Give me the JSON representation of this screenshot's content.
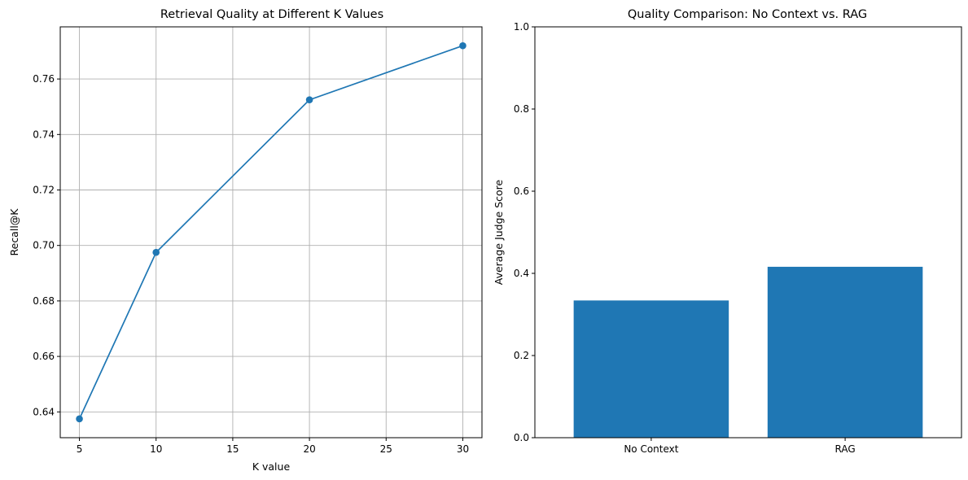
{
  "chart_data": [
    {
      "type": "line",
      "title": "Retrieval Quality at Different K Values",
      "xlabel": "K value",
      "ylabel": "Recall@K",
      "x": [
        5,
        10,
        20,
        30
      ],
      "y": [
        0.6375,
        0.6975,
        0.7525,
        0.772
      ],
      "xlim": [
        3.75,
        31.25
      ],
      "ylim": [
        0.6307,
        0.7788
      ],
      "xticks": [
        5,
        10,
        15,
        20,
        25,
        30
      ],
      "xtick_labels": [
        "5",
        "10",
        "15",
        "20",
        "25",
        "30"
      ],
      "yticks": [
        0.64,
        0.66,
        0.68,
        0.7,
        0.72,
        0.74,
        0.76
      ],
      "ytick_labels": [
        "0.64",
        "0.66",
        "0.68",
        "0.70",
        "0.72",
        "0.74",
        "0.76"
      ],
      "grid": true,
      "marker": "circle",
      "color": "#1f77b4"
    },
    {
      "type": "bar",
      "title": "Quality Comparison: No Context vs. RAG",
      "xlabel": "",
      "ylabel": "Average Judge Score",
      "categories": [
        "No Context",
        "RAG"
      ],
      "values": [
        0.334,
        0.416
      ],
      "ylim": [
        0,
        1.0
      ],
      "yticks": [
        0.0,
        0.2,
        0.4,
        0.6,
        0.8,
        1.0
      ],
      "ytick_labels": [
        "0.0",
        "0.2",
        "0.4",
        "0.6",
        "0.8",
        "1.0"
      ],
      "grid": false,
      "color": "#1f77b4"
    }
  ]
}
